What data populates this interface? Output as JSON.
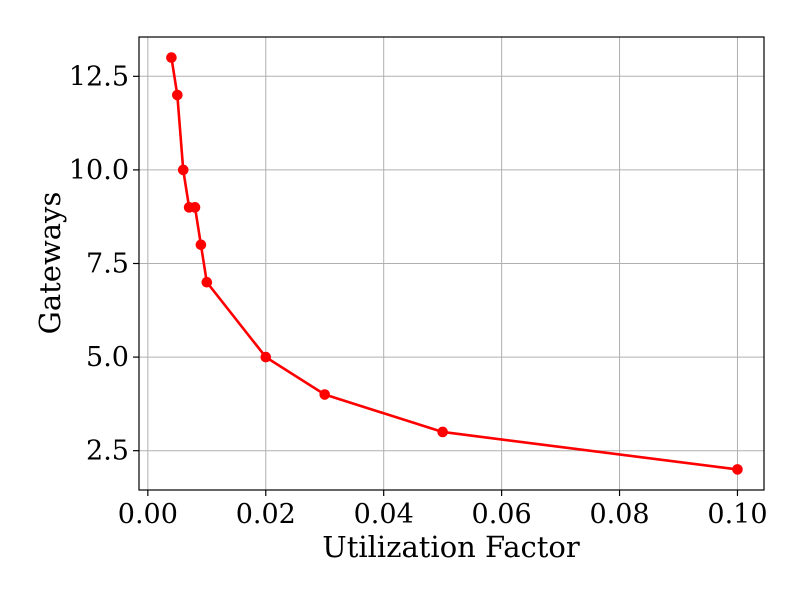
{
  "chart_data": {
    "type": "line",
    "title": "",
    "xlabel": "Utilization Factor",
    "ylabel": "Gateways",
    "xlim": [
      -0.0015,
      0.1045
    ],
    "ylim": [
      1.45,
      13.55
    ],
    "x_ticks": [
      0.0,
      0.02,
      0.04,
      0.06,
      0.08,
      0.1
    ],
    "x_tick_labels": [
      "0.00",
      "0.02",
      "0.04",
      "0.06",
      "0.08",
      "0.10"
    ],
    "y_ticks": [
      2.5,
      5.0,
      7.5,
      10.0,
      12.5
    ],
    "y_tick_labels": [
      "2.5",
      "5.0",
      "7.5",
      "10.0",
      "12.5"
    ],
    "grid": true,
    "legend": "none",
    "series": [
      {
        "color": "#ff0000",
        "marker": "circle",
        "x": [
          0.004,
          0.005,
          0.006,
          0.007,
          0.008,
          0.009,
          0.01,
          0.02,
          0.03,
          0.05,
          0.1
        ],
        "y": [
          13,
          12,
          10,
          9,
          9,
          8,
          7,
          5,
          4,
          3,
          2
        ]
      }
    ]
  }
}
